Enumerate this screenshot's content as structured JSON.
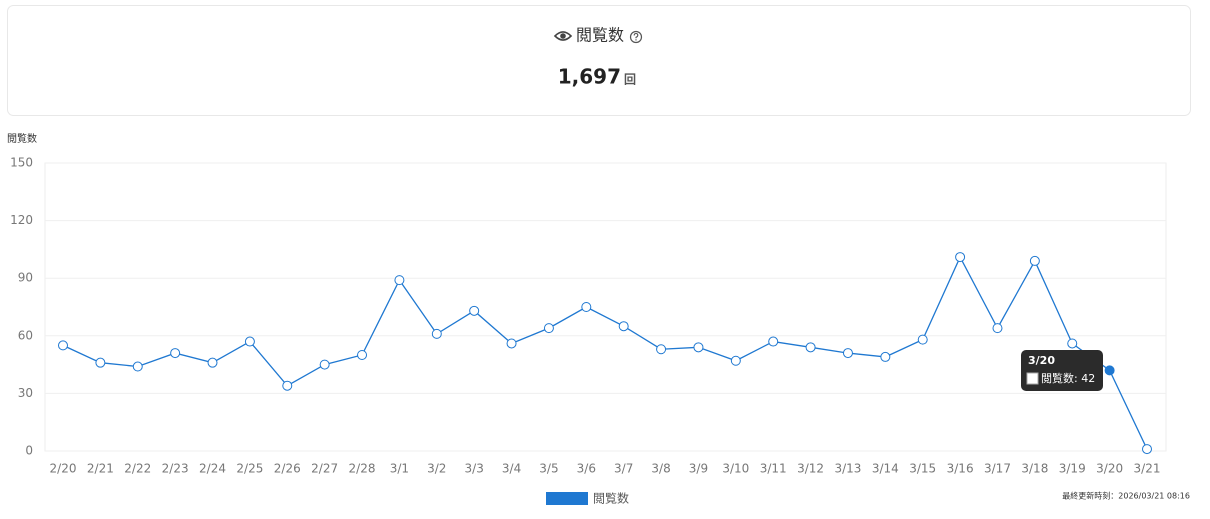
{
  "summary": {
    "label": "閲覧数",
    "value": "1,697",
    "unit": "回"
  },
  "chart_data": {
    "type": "line",
    "y_label": "閲覧数",
    "categories": [
      "2/20",
      "2/21",
      "2/22",
      "2/23",
      "2/24",
      "2/25",
      "2/26",
      "2/27",
      "2/28",
      "3/1",
      "3/2",
      "3/3",
      "3/4",
      "3/5",
      "3/6",
      "3/7",
      "3/8",
      "3/9",
      "3/10",
      "3/11",
      "3/12",
      "3/13",
      "3/14",
      "3/15",
      "3/16",
      "3/17",
      "3/18",
      "3/19",
      "3/20",
      "3/21"
    ],
    "series": [
      {
        "name": "閲覧数",
        "color": "#1f78d1",
        "values": [
          55,
          46,
          44,
          51,
          46,
          57,
          34,
          45,
          50,
          89,
          61,
          73,
          56,
          64,
          75,
          65,
          53,
          54,
          47,
          57,
          54,
          51,
          49,
          58,
          101,
          64,
          99,
          56,
          42,
          1
        ]
      }
    ],
    "ylim": [
      0,
      150
    ],
    "yticks": [
      0,
      30,
      60,
      90,
      120,
      150
    ],
    "grid": true,
    "tooltip": {
      "title": "3/20",
      "text": "閲覧数: 42"
    }
  },
  "footer": "最終更新時刻：2026/03/21 08:16"
}
